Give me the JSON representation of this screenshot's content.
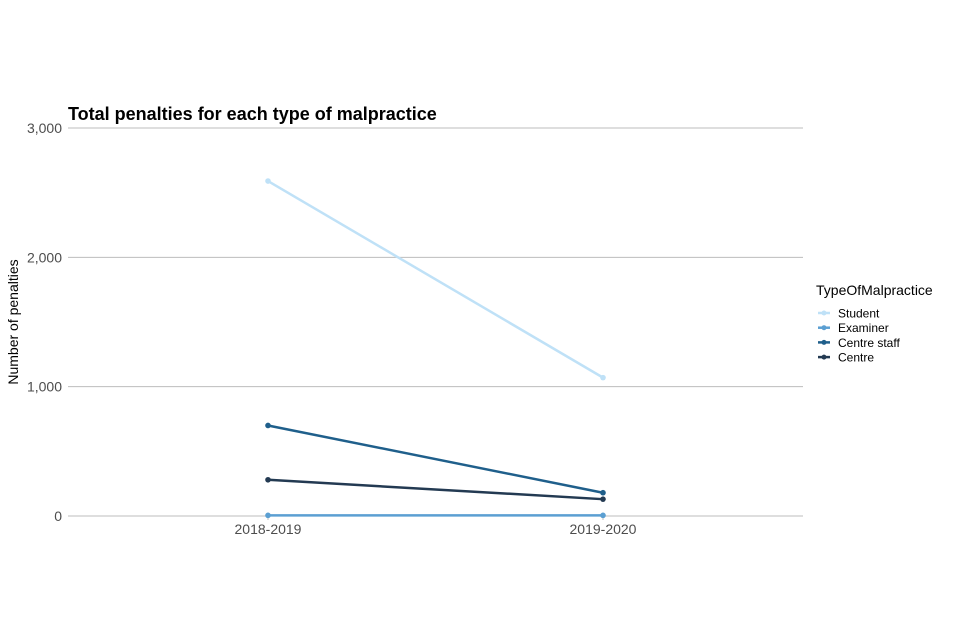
{
  "chart_data": {
    "type": "line",
    "title": "Total penalties for each type of malpractice",
    "xlabel": "",
    "ylabel": "Number of penalties",
    "categories": [
      "2018-2019",
      "2019-2020"
    ],
    "ylim": [
      0,
      3000
    ],
    "yticks": [
      0,
      1000,
      2000,
      3000
    ],
    "ytick_labels": [
      "0",
      "1,000",
      "2,000",
      "3,000"
    ],
    "grid": true,
    "legend": {
      "title": "TypeOfMalpractice",
      "position": "right"
    },
    "series": [
      {
        "name": "Student",
        "values": [
          2590,
          1070
        ],
        "color": "#bfe1f7"
      },
      {
        "name": "Examiner",
        "values": [
          5,
          5
        ],
        "color": "#5b9fd2"
      },
      {
        "name": "Centre staff",
        "values": [
          700,
          180
        ],
        "color": "#1f5f8b"
      },
      {
        "name": "Centre",
        "values": [
          280,
          130
        ],
        "color": "#233a52"
      }
    ]
  }
}
